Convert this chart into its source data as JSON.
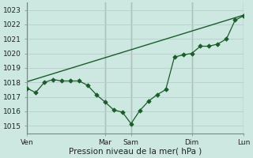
{
  "xlabel": "Pression niveau de la mer( hPa )",
  "bg_color": "#cce8e0",
  "plot_bg_color": "#cce8e0",
  "grid_color": "#bbcccc",
  "vline_color": "#778888",
  "line_color": "#1a5c2a",
  "ylim": [
    1014.5,
    1023.5
  ],
  "yticks": [
    1015,
    1016,
    1017,
    1018,
    1019,
    1020,
    1021,
    1022,
    1023
  ],
  "day_labels": [
    "Ven",
    "Mar",
    "Sam",
    "Dim",
    "Lun"
  ],
  "day_positions": [
    0,
    9,
    12,
    19,
    25
  ],
  "line1_x": [
    0,
    1,
    2,
    3,
    4,
    5,
    6,
    7,
    8,
    9,
    10,
    11,
    12,
    13,
    14,
    15,
    16,
    17,
    18,
    19,
    20,
    21,
    22,
    23,
    24,
    25
  ],
  "line1_y": [
    1017.6,
    1017.3,
    1018.0,
    1018.2,
    1018.1,
    1018.1,
    1018.1,
    1017.8,
    1017.15,
    1016.65,
    1016.1,
    1015.95,
    1015.15,
    1016.05,
    1016.7,
    1017.15,
    1017.5,
    1019.75,
    1019.9,
    1020.0,
    1020.5,
    1020.5,
    1020.65,
    1021.0,
    1022.3,
    1022.6
  ],
  "line2_x": [
    0,
    25
  ],
  "line2_y": [
    1018.05,
    1022.65
  ],
  "xlim": [
    0,
    25
  ],
  "n_xgrid": 25
}
